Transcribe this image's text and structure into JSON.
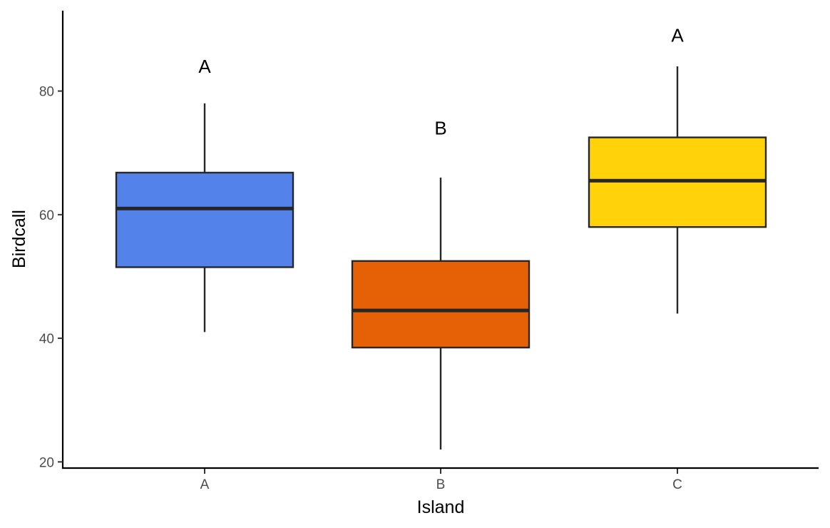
{
  "chart_data": {
    "type": "boxplot",
    "title": "",
    "xlabel": "Island",
    "ylabel": "Birdcall",
    "ylim": [
      19,
      93
    ],
    "yticks": [
      20,
      40,
      60,
      80
    ],
    "grid": false,
    "legend": "none",
    "categories": [
      "A",
      "B",
      "C"
    ],
    "boxes": [
      {
        "category": "A",
        "whisker_low": 41,
        "q1": 51.5,
        "median": 61,
        "q3": 66.8,
        "whisker_high": 78,
        "color": "#5282EA",
        "letter": "A",
        "letter_y": 84
      },
      {
        "category": "B",
        "whisker_low": 22,
        "q1": 38.5,
        "median": 44.5,
        "q3": 52.5,
        "whisker_high": 66,
        "color": "#E66106",
        "letter": "B",
        "letter_y": 74
      },
      {
        "category": "C",
        "whisker_low": 44,
        "q1": 58,
        "median": 65.5,
        "q3": 72.5,
        "whisker_high": 84,
        "color": "#FFD20A",
        "letter": "A",
        "letter_y": 89
      }
    ]
  }
}
